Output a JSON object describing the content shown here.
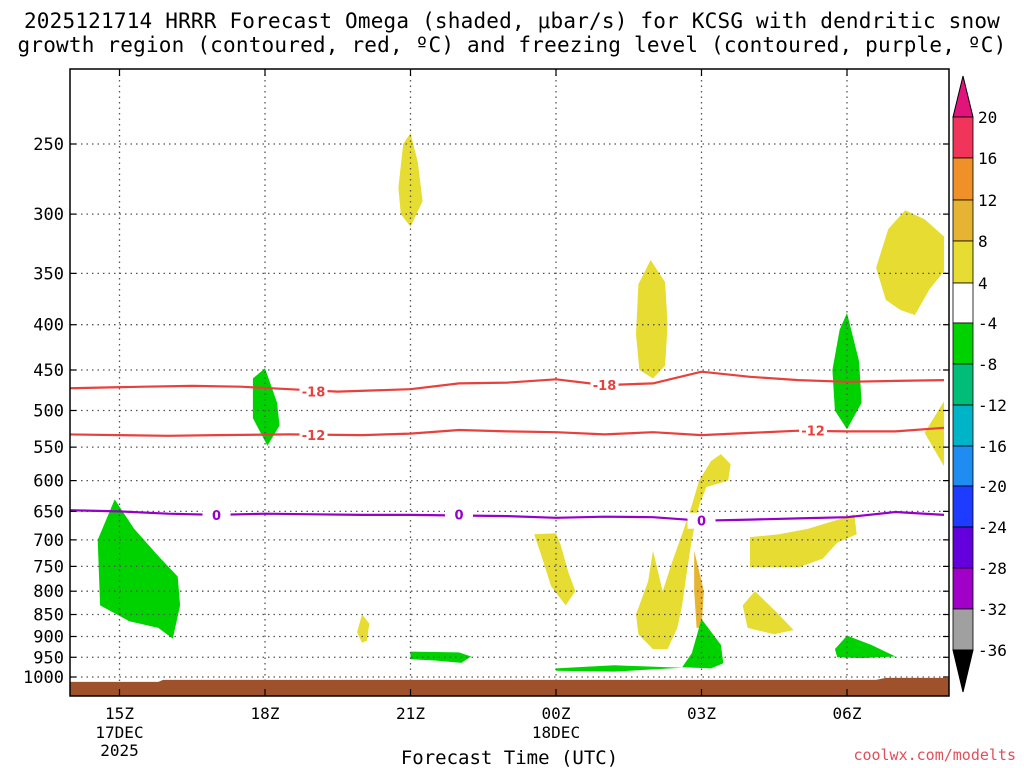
{
  "title_line1": "2025121714 HRRR Forecast Omega (shaded, μbar/s) for KCSG with dendritic snow",
  "title_line2": "growth region (contoured, red, ºC) and freezing level (contoured, purple, ºC)",
  "credit": "coolwx.com/modelts",
  "chart_data": {
    "type": "contour-time-height",
    "xlabel": "Forecast Time (UTC)",
    "x_ticks": [
      {
        "hour": 0,
        "label": "15Z",
        "sub": [
          "17DEC",
          "2025"
        ]
      },
      {
        "hour": 3,
        "label": "18Z",
        "sub": []
      },
      {
        "hour": 6,
        "label": "21Z",
        "sub": []
      },
      {
        "hour": 9,
        "label": "00Z",
        "sub": [
          "18DEC"
        ]
      },
      {
        "hour": 12,
        "label": "03Z",
        "sub": []
      },
      {
        "hour": 15,
        "label": "06Z",
        "sub": []
      }
    ],
    "xlim_hours": [
      -1.05,
      17.0
    ],
    "y_levels_hpa": [
      250,
      300,
      350,
      400,
      450,
      500,
      550,
      600,
      650,
      700,
      750,
      800,
      850,
      900,
      950,
      1000
    ],
    "ylim_hpa": [
      200,
      1025
    ],
    "y_scale": "log-pressure",
    "grid": true,
    "terrain": {
      "color": "#9e512b",
      "pressure_hpa": 1010
    },
    "colorbar": {
      "labels": [
        "20",
        "16",
        "12",
        "8",
        "4",
        "-4",
        "-8",
        "-12",
        "-16",
        "-20",
        "-24",
        "-28",
        "-32",
        "-36"
      ],
      "colors": [
        "#f0345a",
        "#f09028",
        "#e6b432",
        "#e6dc32",
        "#ffffff",
        "#00d200",
        "#00be78",
        "#00b4c8",
        "#1e8cf0",
        "#1e3cff",
        "#6400dc",
        "#a000c8",
        "#a0a0a0"
      ],
      "top_arrow_color": "#e0147a",
      "bottom_arrow_color": "#000000"
    },
    "contours": [
      {
        "name": "-18",
        "color": "#e8403c",
        "points": [
          [
            -1.05,
            472
          ],
          [
            0.5,
            470
          ],
          [
            1.5,
            469
          ],
          [
            2.5,
            470
          ],
          [
            3.5,
            473
          ],
          [
            4.5,
            476
          ],
          [
            6,
            473
          ],
          [
            7,
            466
          ],
          [
            8,
            465
          ],
          [
            9,
            461
          ],
          [
            10,
            468
          ],
          [
            11,
            466
          ],
          [
            12,
            452
          ],
          [
            13,
            458
          ],
          [
            14,
            462
          ],
          [
            15,
            464
          ],
          [
            16,
            463
          ],
          [
            17,
            462
          ]
        ],
        "labels": [
          [
            4.0,
            476
          ],
          [
            10.0,
            468
          ]
        ]
      },
      {
        "name": "-12",
        "color": "#e8403c",
        "points": [
          [
            -1.05,
            532
          ],
          [
            1,
            534
          ],
          [
            2,
            533
          ],
          [
            3.5,
            532
          ],
          [
            5,
            533
          ],
          [
            6,
            531
          ],
          [
            7,
            526
          ],
          [
            8,
            528
          ],
          [
            9,
            529
          ],
          [
            10,
            532
          ],
          [
            11,
            529
          ],
          [
            12,
            533
          ],
          [
            13,
            530
          ],
          [
            14,
            527
          ],
          [
            15,
            528
          ],
          [
            16,
            528
          ],
          [
            17,
            523
          ]
        ],
        "labels": [
          [
            4.0,
            533
          ],
          [
            14.3,
            527
          ]
        ]
      },
      {
        "name": "0",
        "color": "#9600c8",
        "points": [
          [
            -1.05,
            648
          ],
          [
            0,
            650
          ],
          [
            1,
            654
          ],
          [
            2,
            656
          ],
          [
            3,
            654
          ],
          [
            4,
            655
          ],
          [
            5,
            656
          ],
          [
            6,
            656
          ],
          [
            7,
            657
          ],
          [
            8,
            658
          ],
          [
            9,
            661
          ],
          [
            10,
            659
          ],
          [
            11,
            660
          ],
          [
            12,
            666
          ],
          [
            13,
            664
          ],
          [
            14,
            662
          ],
          [
            15,
            660
          ],
          [
            16,
            651
          ],
          [
            17,
            656
          ]
        ],
        "labels": [
          [
            2.0,
            656
          ],
          [
            7.0,
            655
          ],
          [
            12.0,
            666
          ]
        ]
      }
    ],
    "omega_regions": [
      {
        "value": "4 to 8",
        "color": "#e6dc32",
        "points": [
          [
            5.75,
            280
          ],
          [
            5.85,
            250
          ],
          [
            6.0,
            243
          ],
          [
            6.15,
            262
          ],
          [
            6.25,
            290
          ],
          [
            6.0,
            310
          ],
          [
            5.8,
            300
          ]
        ]
      },
      {
        "value": "4 to 8",
        "color": "#e6dc32",
        "points": [
          [
            10.7,
            360
          ],
          [
            10.95,
            338
          ],
          [
            11.25,
            358
          ],
          [
            11.3,
            400
          ],
          [
            11.25,
            445
          ],
          [
            11.0,
            460
          ],
          [
            10.72,
            450
          ],
          [
            10.65,
            410
          ]
        ]
      },
      {
        "value": "4 to 8",
        "color": "#e6dc32",
        "points": [
          [
            15.6,
            345
          ],
          [
            15.85,
            312
          ],
          [
            16.2,
            297
          ],
          [
            16.6,
            304
          ],
          [
            17.0,
            318
          ],
          [
            17.0,
            348
          ],
          [
            16.7,
            365
          ],
          [
            16.4,
            390
          ],
          [
            16.1,
            385
          ],
          [
            15.8,
            375
          ]
        ]
      },
      {
        "value": "4 to 8",
        "color": "#e6dc32",
        "points": [
          [
            17.0,
            488
          ],
          [
            16.6,
            530
          ],
          [
            17.0,
            578
          ]
        ]
      },
      {
        "value": "4 to 8",
        "color": "#e6dc32",
        "points": [
          [
            8.55,
            690
          ],
          [
            9.0,
            688
          ],
          [
            9.1,
            710
          ],
          [
            9.25,
            760
          ],
          [
            9.4,
            800
          ],
          [
            9.2,
            830
          ],
          [
            8.9,
            790
          ],
          [
            8.7,
            730
          ]
        ]
      },
      {
        "value": "4 to 8",
        "color": "#e6dc32",
        "points": [
          [
            11.2,
            800
          ],
          [
            11.4,
            740
          ],
          [
            11.6,
            690
          ],
          [
            11.8,
            640
          ],
          [
            11.95,
            600
          ],
          [
            12.2,
            570
          ],
          [
            12.4,
            560
          ],
          [
            12.6,
            575
          ],
          [
            12.55,
            600
          ],
          [
            12.1,
            610
          ],
          [
            11.95,
            640
          ],
          [
            11.8,
            700
          ],
          [
            11.7,
            760
          ],
          [
            11.6,
            830
          ],
          [
            11.5,
            880
          ],
          [
            11.3,
            930
          ],
          [
            11.0,
            930
          ],
          [
            10.7,
            895
          ],
          [
            10.65,
            850
          ],
          [
            10.9,
            780
          ],
          [
            11.0,
            720
          ]
        ]
      },
      {
        "value": "4 to 8",
        "color": "#e6dc32",
        "points": [
          [
            13.0,
            695
          ],
          [
            13.6,
            690
          ],
          [
            14.2,
            680
          ],
          [
            14.9,
            662
          ],
          [
            15.15,
            655
          ],
          [
            15.2,
            690
          ],
          [
            14.8,
            705
          ],
          [
            14.5,
            735
          ],
          [
            14.0,
            752
          ],
          [
            13.0,
            752
          ]
        ]
      },
      {
        "value": "4 to 8",
        "color": "#e6dc32",
        "points": [
          [
            12.85,
            830
          ],
          [
            13.1,
            800
          ],
          [
            13.5,
            840
          ],
          [
            13.9,
            885
          ],
          [
            13.5,
            895
          ],
          [
            12.95,
            880
          ]
        ]
      },
      {
        "value": "4 to 8",
        "color": "#e6dc32",
        "points": [
          [
            4.9,
            890
          ],
          [
            5.0,
            850
          ],
          [
            5.15,
            870
          ],
          [
            5.1,
            910
          ],
          [
            5.0,
            915
          ]
        ]
      },
      {
        "value": "8 to 12",
        "color": "#e6b432",
        "points": [
          [
            11.85,
            720
          ],
          [
            12.05,
            800
          ],
          [
            12.0,
            880
          ],
          [
            11.9,
            880
          ],
          [
            11.85,
            800
          ]
        ]
      },
      {
        "value": "-8 to -4",
        "color": "#00d200",
        "points": [
          [
            2.75,
            460
          ],
          [
            3.0,
            448
          ],
          [
            3.25,
            490
          ],
          [
            3.3,
            520
          ],
          [
            3.05,
            548
          ],
          [
            2.75,
            510
          ]
        ]
      },
      {
        "value": "-8 to -4",
        "color": "#00d200",
        "points": [
          [
            14.7,
            450
          ],
          [
            14.85,
            405
          ],
          [
            15.0,
            388
          ],
          [
            15.25,
            440
          ],
          [
            15.3,
            490
          ],
          [
            15.0,
            525
          ],
          [
            14.75,
            500
          ]
        ]
      },
      {
        "value": "-8 to -4",
        "color": "#00d200",
        "points": [
          [
            -0.45,
            700
          ],
          [
            -0.1,
            630
          ],
          [
            0.3,
            680
          ],
          [
            0.8,
            730
          ],
          [
            1.2,
            770
          ],
          [
            1.25,
            830
          ],
          [
            1.1,
            905
          ],
          [
            0.8,
            880
          ],
          [
            0.2,
            865
          ],
          [
            -0.4,
            830
          ]
        ]
      },
      {
        "value": "-8 to -4",
        "color": "#00d200",
        "points": [
          [
            6.0,
            936
          ],
          [
            7.0,
            938
          ],
          [
            7.25,
            948
          ],
          [
            7.05,
            964
          ],
          [
            6.5,
            958
          ],
          [
            6.0,
            955
          ]
        ]
      },
      {
        "value": "-8 to -4",
        "color": "#00d200",
        "points": [
          [
            9.0,
            978
          ],
          [
            10.2,
            970
          ],
          [
            11.6,
            976
          ],
          [
            10.2,
            986
          ],
          [
            9.0,
            984
          ]
        ]
      },
      {
        "value": "-8 to -4",
        "color": "#00d200",
        "points": [
          [
            11.6,
            975
          ],
          [
            11.8,
            940
          ],
          [
            12.0,
            860
          ],
          [
            12.4,
            920
          ],
          [
            12.45,
            965
          ],
          [
            12.2,
            978
          ]
        ]
      },
      {
        "value": "-8 to -4",
        "color": "#00d200",
        "points": [
          [
            14.75,
            930
          ],
          [
            15.0,
            898
          ],
          [
            15.5,
            920
          ],
          [
            16.0,
            948
          ],
          [
            15.3,
            952
          ],
          [
            14.8,
            950
          ]
        ]
      }
    ]
  }
}
